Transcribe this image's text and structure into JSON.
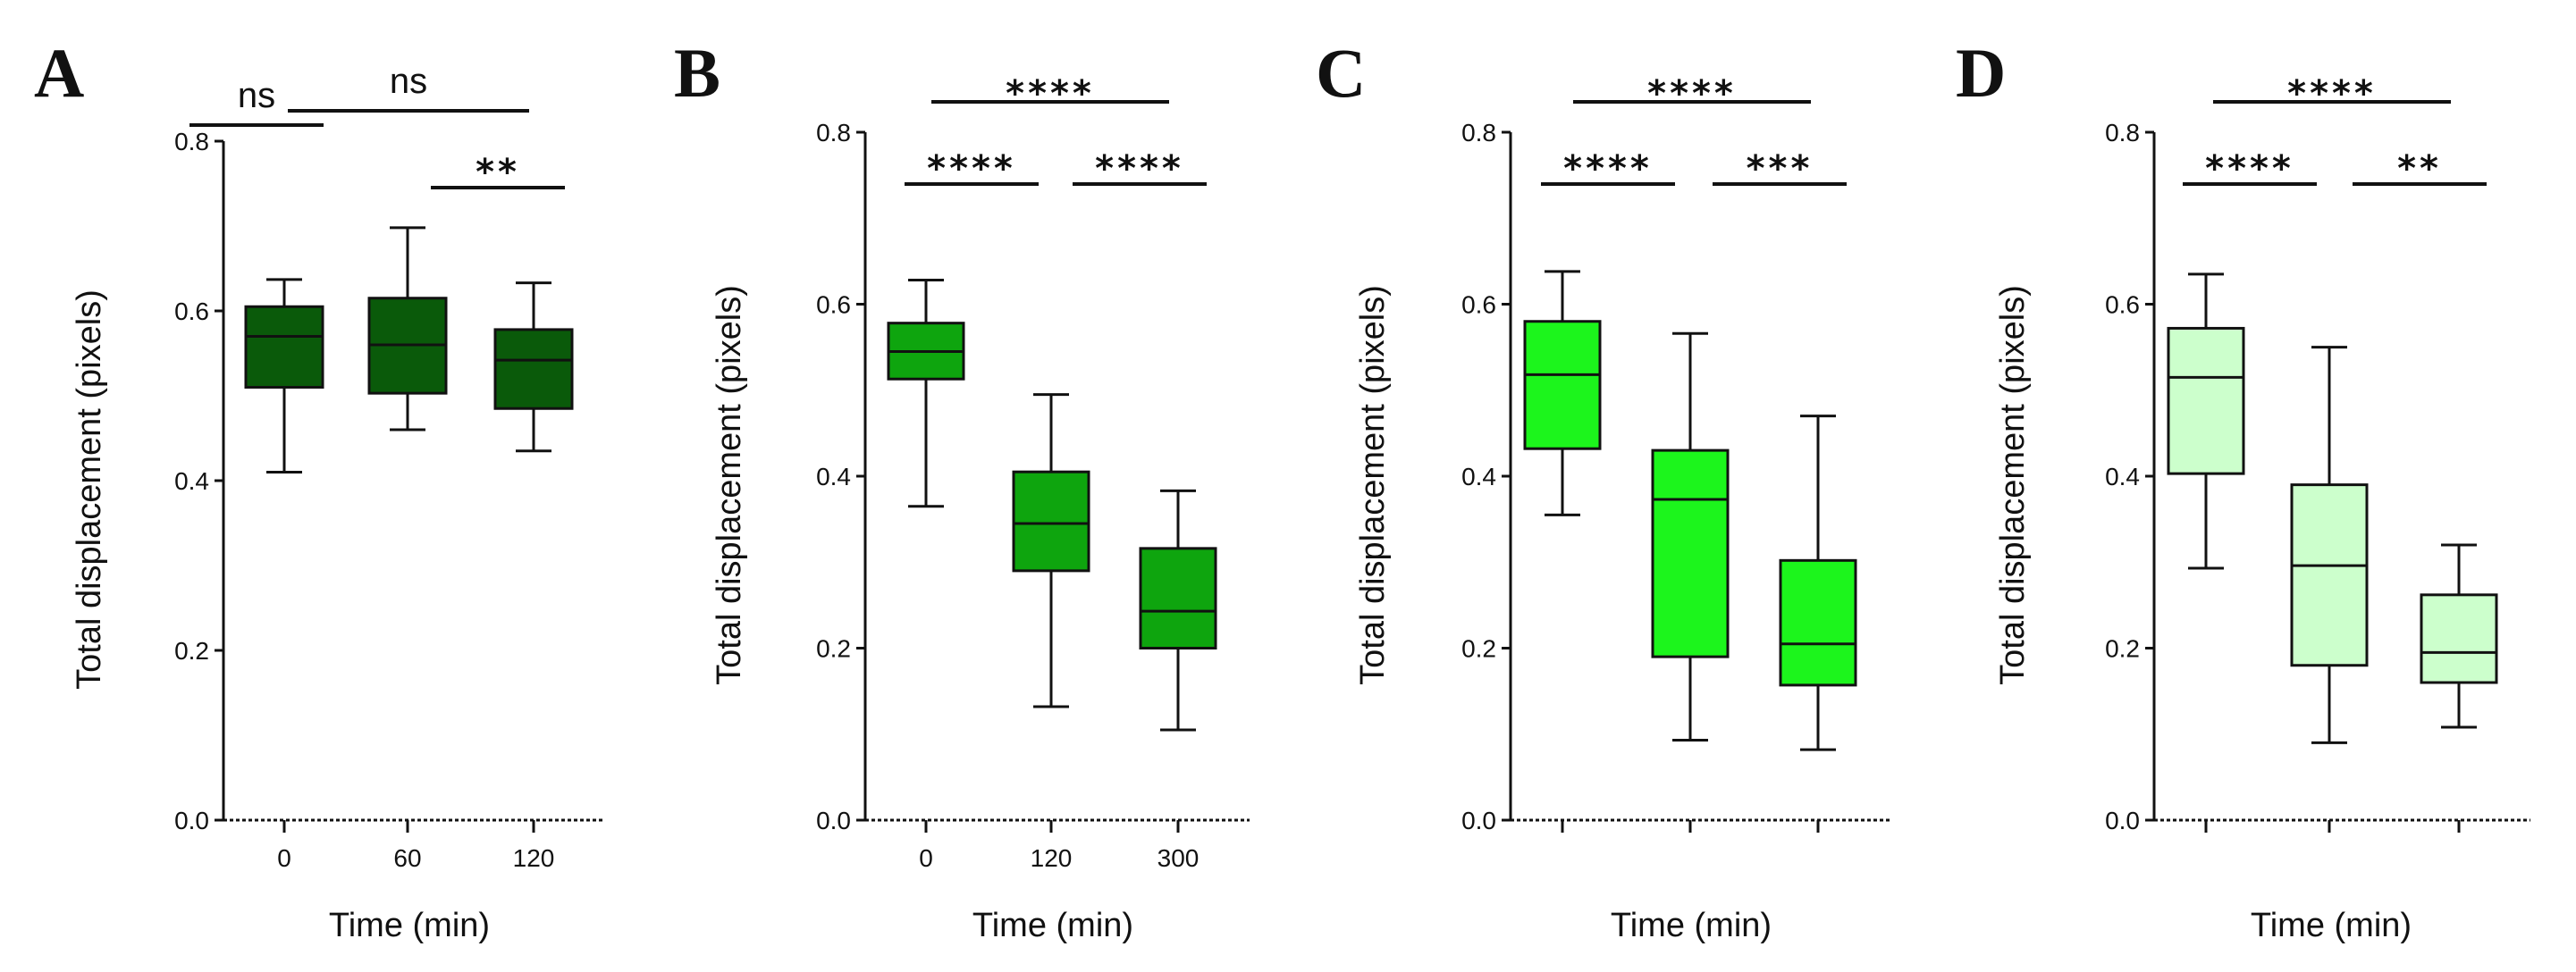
{
  "chart_data": [
    {
      "type": "box",
      "panel": "A",
      "ylabel": "Total displacement (pixels)",
      "xlabel": "Time  (min)",
      "ylim": [
        0.0,
        0.8
      ],
      "yticks": [
        "0.0",
        "0.2",
        "0.4",
        "0.6",
        "0.8"
      ],
      "color": "#0a5a0a",
      "categories": [
        "0",
        "60",
        "120"
      ],
      "boxes": [
        {
          "min": 0.41,
          "q1": 0.51,
          "median": 0.57,
          "q3": 0.605,
          "max": 0.637
        },
        {
          "min": 0.46,
          "q1": 0.503,
          "median": 0.56,
          "q3": 0.615,
          "max": 0.698
        },
        {
          "min": 0.435,
          "q1": 0.485,
          "median": 0.542,
          "q3": 0.578,
          "max": 0.633
        }
      ],
      "comparisons": [
        {
          "from": 0,
          "to": 1,
          "label": "ns"
        },
        {
          "from": 1,
          "to": 2,
          "label": "**"
        },
        {
          "from": 0,
          "to": 2,
          "label": "ns"
        }
      ]
    },
    {
      "type": "box",
      "panel": "B",
      "ylabel": "Total displacement (pixels)",
      "xlabel": "Time (min)",
      "ylim": [
        0.0,
        0.8
      ],
      "yticks": [
        "0.0",
        "0.2",
        "0.4",
        "0.6",
        "0.8"
      ],
      "color": "#0ea50e",
      "categories": [
        "0",
        "120",
        "300"
      ],
      "boxes": [
        {
          "min": 0.365,
          "q1": 0.513,
          "median": 0.545,
          "q3": 0.578,
          "max": 0.628
        },
        {
          "min": 0.132,
          "q1": 0.29,
          "median": 0.345,
          "q3": 0.405,
          "max": 0.495
        },
        {
          "min": 0.105,
          "q1": 0.2,
          "median": 0.243,
          "q3": 0.316,
          "max": 0.383
        }
      ],
      "comparisons": [
        {
          "from": 0,
          "to": 1,
          "label": "****"
        },
        {
          "from": 1,
          "to": 2,
          "label": "****"
        },
        {
          "from": 0,
          "to": 2,
          "label": "****"
        }
      ]
    },
    {
      "type": "box",
      "panel": "C",
      "ylabel": "Total displacement (pixels)",
      "xlabel": "Time (min)",
      "ylim": [
        0.0,
        0.8
      ],
      "yticks": [
        "0.0",
        "0.2",
        "0.4",
        "0.6",
        "0.8"
      ],
      "color": "#1cf51c",
      "categories": [
        "",
        "",
        ""
      ],
      "boxes": [
        {
          "min": 0.355,
          "q1": 0.432,
          "median": 0.518,
          "q3": 0.58,
          "max": 0.638
        },
        {
          "min": 0.093,
          "q1": 0.19,
          "median": 0.373,
          "q3": 0.43,
          "max": 0.566
        },
        {
          "min": 0.082,
          "q1": 0.157,
          "median": 0.205,
          "q3": 0.302,
          "max": 0.47
        }
      ],
      "comparisons": [
        {
          "from": 0,
          "to": 1,
          "label": "****"
        },
        {
          "from": 1,
          "to": 2,
          "label": "***"
        },
        {
          "from": 0,
          "to": 2,
          "label": "****"
        }
      ]
    },
    {
      "type": "box",
      "panel": "D",
      "ylabel": "Total displacement (pixels)",
      "xlabel": "Time (min)",
      "ylim": [
        0.0,
        0.8
      ],
      "yticks": [
        "0.0",
        "0.2",
        "0.4",
        "0.6",
        "0.8"
      ],
      "color": "#ccffcc",
      "categories": [
        "",
        "",
        ""
      ],
      "boxes": [
        {
          "min": 0.293,
          "q1": 0.403,
          "median": 0.515,
          "q3": 0.572,
          "max": 0.635
        },
        {
          "min": 0.09,
          "q1": 0.18,
          "median": 0.296,
          "q3": 0.39,
          "max": 0.55
        },
        {
          "min": 0.108,
          "q1": 0.16,
          "median": 0.195,
          "q3": 0.262,
          "max": 0.32
        }
      ],
      "comparisons": [
        {
          "from": 0,
          "to": 1,
          "label": "****"
        },
        {
          "from": 1,
          "to": 2,
          "label": "**"
        },
        {
          "from": 0,
          "to": 2,
          "label": "****"
        }
      ]
    }
  ]
}
